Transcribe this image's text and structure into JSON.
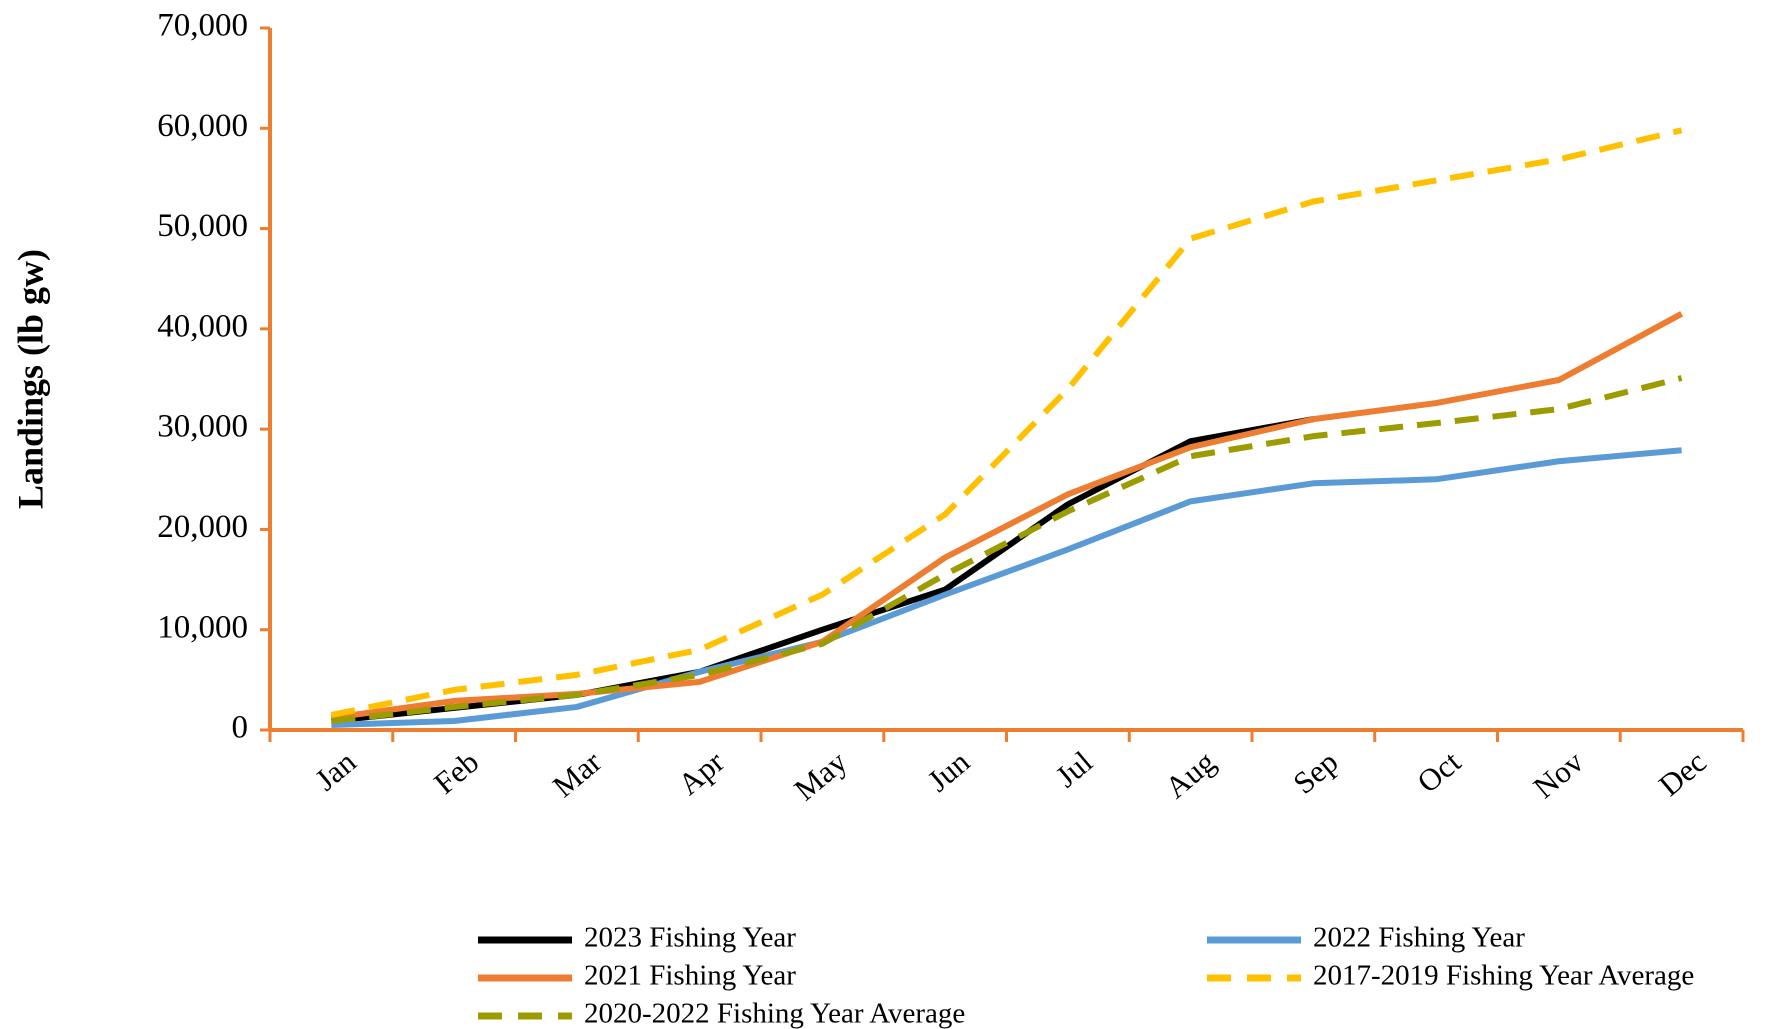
{
  "chart_data": {
    "type": "line",
    "y_label": "Landings (lb gw)",
    "categories": [
      "Jan",
      "Feb",
      "Mar",
      "Apr",
      "May",
      "Jun",
      "Jul",
      "Aug",
      "Sep",
      "Oct",
      "Nov",
      "Dec"
    ],
    "series": [
      {
        "name": "2023 Fishing Year",
        "color": "#000000",
        "dashed": false,
        "values": [
          900,
          2200,
          3500,
          5800,
          10000,
          14000,
          22500,
          28800,
          31000,
          null,
          null,
          null
        ]
      },
      {
        "name": "2022 Fishing Year",
        "color": "#5b9bd5",
        "dashed": false,
        "values": [
          500,
          900,
          2300,
          5800,
          8800,
          13500,
          18000,
          22800,
          24600,
          25000,
          26800,
          27900
        ]
      },
      {
        "name": "2021 Fishing Year",
        "color": "#ed7d31",
        "dashed": false,
        "values": [
          1200,
          2900,
          3600,
          4800,
          8800,
          17200,
          23500,
          28200,
          31000,
          32600,
          34900,
          41500
        ]
      },
      {
        "name": "2017-2019 Fishing Year Average",
        "color": "#ffc000",
        "dashed": true,
        "values": [
          1500,
          4000,
          5500,
          8000,
          13500,
          21500,
          34000,
          49000,
          52700,
          54800,
          56900,
          59800
        ]
      },
      {
        "name": "2020-2022 Fishing Year Average",
        "color": "#9c9c00",
        "dashed": true,
        "values": [
          900,
          2300,
          3500,
          5500,
          8600,
          15500,
          21800,
          27300,
          29300,
          30600,
          32000,
          35100
        ]
      }
    ],
    "ylim": [
      0,
      70000
    ],
    "yticks": [
      0,
      {
        "value": 10000,
        "label": "10,000"
      },
      {
        "value": 20000,
        "label": "20,000"
      },
      {
        "value": 30000,
        "label": "30,000"
      },
      {
        "value": 40000,
        "label": "40,000"
      },
      {
        "value": 50000,
        "label": "50,000"
      },
      {
        "value": 60000,
        "label": "60,000"
      },
      {
        "value": 70000,
        "label": "70,000"
      }
    ],
    "axis_color": "#ed7d31",
    "grid": false
  }
}
